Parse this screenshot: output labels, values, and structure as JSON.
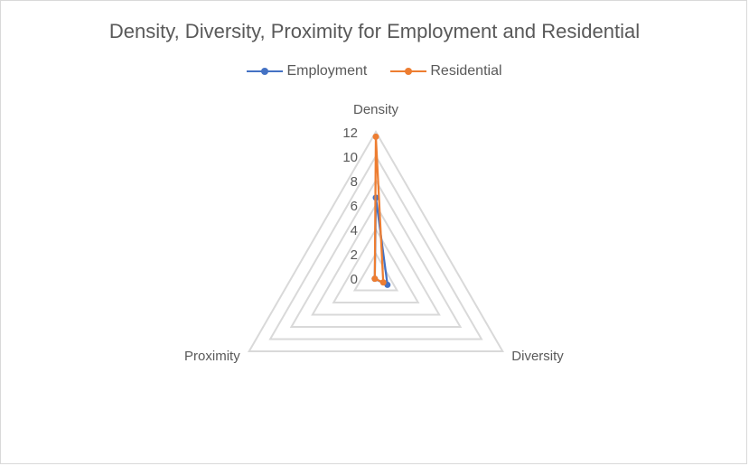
{
  "chart_data": {
    "type": "radar",
    "title": "Density, Diversity, Proximity for Employment and Residential",
    "axes": [
      "Density",
      "Diversity",
      "Proximity"
    ],
    "ticks": [
      0,
      2,
      4,
      6,
      8,
      10,
      12
    ],
    "rmax": 12,
    "grid": true,
    "legend_position": "top",
    "series": [
      {
        "name": "Employment",
        "color": "#4472c4",
        "values": [
          6.6,
          1.1,
          0.1
        ]
      },
      {
        "name": "Residential",
        "color": "#ed7d31",
        "values": [
          11.6,
          0.7,
          0.1
        ]
      }
    ]
  }
}
